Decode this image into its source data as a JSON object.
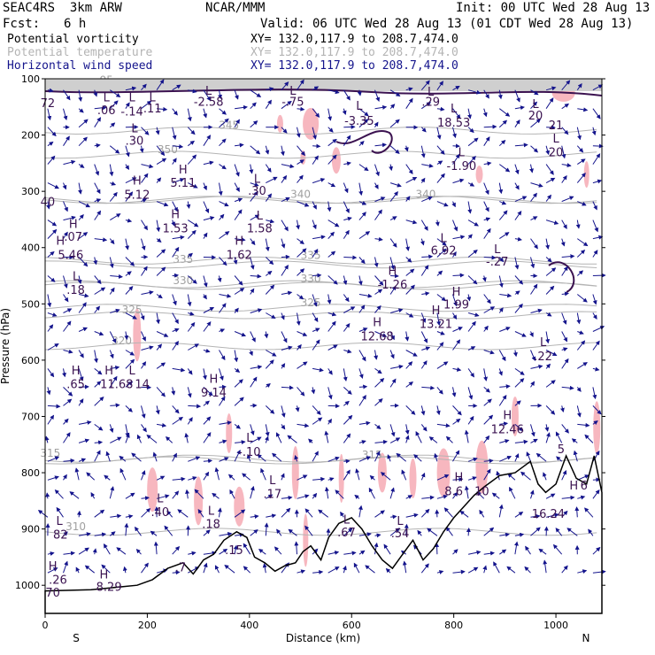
{
  "header": {
    "model": "SEAC4RS  3km ARW",
    "org": "NCAR/MMM",
    "init": "Init: 00 UTC Wed 28 Aug 13",
    "fcst_label": "Fcst:",
    "fcst_value": "6 h",
    "valid": "Valid: 06 UTC Wed 28 Aug 13 (01 CDT Wed 28 Aug 13)"
  },
  "legend": [
    {
      "field": "Potential vorticity",
      "xy": "XY= 132.0,117.9 to 208.7,474.0",
      "color": "#000000"
    },
    {
      "field": "Potential temperature",
      "xy": "XY= 132.0,117.9 to 208.7,474.0",
      "color": "#b4b4b4"
    },
    {
      "field": "Horizontal wind speed",
      "xy": "XY= 132.0,117.9 to 208.7,474.0",
      "color": "#14148c"
    }
  ],
  "chart_data": {
    "type": "cross-section",
    "xlabel": "Distance (km)",
    "ylabel": "Pressure (hPa)",
    "xlim": [
      0,
      1090
    ],
    "ylim": [
      1050,
      100
    ],
    "x_ticks": [
      0,
      200,
      400,
      600,
      800,
      1000
    ],
    "y_ticks": [
      100,
      200,
      300,
      400,
      500,
      600,
      700,
      800,
      900,
      1000
    ],
    "endpoints": {
      "left": "S",
      "right": "N"
    },
    "theta_contours": [
      {
        "label": "310",
        "p": 905,
        "lx": 60
      },
      {
        "label": "315",
        "p": 775,
        "lx": 10
      },
      {
        "label": "315",
        "p": 778,
        "lx": 640
      },
      {
        "label": "320",
        "p": 575,
        "lx": 150
      },
      {
        "label": "325",
        "p": 520,
        "lx": 170
      },
      {
        "label": "325",
        "p": 507,
        "lx": 520
      },
      {
        "label": "330",
        "p": 468,
        "lx": 270
      },
      {
        "label": "330",
        "p": 465,
        "lx": 520
      },
      {
        "label": "335",
        "p": 430,
        "lx": 270
      },
      {
        "label": "335",
        "p": 423,
        "lx": 520
      },
      {
        "label": "340",
        "p": 315,
        "lx": 500
      },
      {
        "label": "340",
        "p": 315,
        "lx": 745
      },
      {
        "label": "345",
        "p": 192,
        "lx": 360
      },
      {
        "label": "350",
        "p": 235,
        "lx": 240
      },
      {
        "label": "95",
        "p": 112,
        "lx": 120
      }
    ],
    "extrema": [
      {
        "t": "72",
        "x": 5,
        "p": 150
      },
      {
        "t": "L",
        "x": 120,
        "p": 140
      },
      {
        "t": ".06",
        "x": 120,
        "p": 163
      },
      {
        "t": "L",
        "x": 170,
        "p": 140
      },
      {
        "t": "-.14",
        "x": 170,
        "p": 165
      },
      {
        "t": "L",
        "x": 210,
        "p": 140
      },
      {
        "t": ".11",
        "x": 210,
        "p": 160
      },
      {
        "t": "L",
        "x": 175,
        "p": 195
      },
      {
        "t": ".30",
        "x": 175,
        "p": 217
      },
      {
        "t": "L",
        "x": 320,
        "p": 128
      },
      {
        "t": "-2.58",
        "x": 320,
        "p": 148
      },
      {
        "t": "L",
        "x": 485,
        "p": 128
      },
      {
        "t": "-.75",
        "x": 485,
        "p": 148
      },
      {
        "t": "L",
        "x": 615,
        "p": 155
      },
      {
        "t": "-3.35",
        "x": 615,
        "p": 182
      },
      {
        "t": "L",
        "x": 755,
        "p": 130
      },
      {
        "t": ".29",
        "x": 755,
        "p": 148
      },
      {
        "t": "L",
        "x": 800,
        "p": 160
      },
      {
        "t": "18.53",
        "x": 800,
        "p": 185
      },
      {
        "t": "L",
        "x": 815,
        "p": 238
      },
      {
        "t": "-1.90",
        "x": 815,
        "p": 262
      },
      {
        "t": "L",
        "x": 960,
        "p": 152
      },
      {
        "t": "20",
        "x": 960,
        "p": 172
      },
      {
        "t": "21",
        "x": 1000,
        "p": 190
      },
      {
        "t": "L",
        "x": 1000,
        "p": 213
      },
      {
        "t": "20",
        "x": 1000,
        "p": 238
      },
      {
        "t": "40",
        "x": 5,
        "p": 326
      },
      {
        "t": "H",
        "x": 180,
        "p": 288
      },
      {
        "t": "5.12",
        "x": 180,
        "p": 313
      },
      {
        "t": "H",
        "x": 270,
        "p": 268
      },
      {
        "t": "5.11",
        "x": 270,
        "p": 292
      },
      {
        "t": "L",
        "x": 415,
        "p": 285
      },
      {
        "t": ".30",
        "x": 415,
        "p": 306
      },
      {
        "t": "H",
        "x": 255,
        "p": 348
      },
      {
        "t": "1.53",
        "x": 255,
        "p": 373
      },
      {
        "t": "L",
        "x": 420,
        "p": 350
      },
      {
        "t": "1.58",
        "x": 420,
        "p": 373
      },
      {
        "t": "H",
        "x": 380,
        "p": 395
      },
      {
        "t": "1.62",
        "x": 380,
        "p": 420
      },
      {
        "t": "H",
        "x": 55,
        "p": 365
      },
      {
        "t": ".07",
        "x": 55,
        "p": 388
      },
      {
        "t": "H",
        "x": 30,
        "p": 395
      },
      {
        "t": "5.46",
        "x": 50,
        "p": 420
      },
      {
        "t": "L",
        "x": 60,
        "p": 458
      },
      {
        "t": ".18",
        "x": 60,
        "p": 482
      },
      {
        "t": "L",
        "x": 780,
        "p": 390
      },
      {
        "t": "6.92",
        "x": 780,
        "p": 412
      },
      {
        "t": "L",
        "x": 885,
        "p": 410
      },
      {
        "t": "-.27",
        "x": 885,
        "p": 432
      },
      {
        "t": "H",
        "x": 680,
        "p": 448
      },
      {
        "t": "-1.26",
        "x": 680,
        "p": 473
      },
      {
        "t": "H",
        "x": 805,
        "p": 485
      },
      {
        "t": "1.99",
        "x": 805,
        "p": 508
      },
      {
        "t": "H",
        "x": 765,
        "p": 518
      },
      {
        "t": "13.21",
        "x": 765,
        "p": 543
      },
      {
        "t": "H",
        "x": 650,
        "p": 540
      },
      {
        "t": "12.68",
        "x": 650,
        "p": 565
      },
      {
        "t": "L",
        "x": 975,
        "p": 575
      },
      {
        "t": ".22",
        "x": 975,
        "p": 600
      },
      {
        "t": "H",
        "x": 60,
        "p": 625
      },
      {
        "t": ".65",
        "x": 60,
        "p": 650
      },
      {
        "t": "H",
        "x": 125,
        "p": 625
      },
      {
        "t": "11.68",
        "x": 140,
        "p": 650
      },
      {
        "t": "L",
        "x": 170,
        "p": 625
      },
      {
        "t": "14",
        "x": 190,
        "p": 650
      },
      {
        "t": "H",
        "x": 330,
        "p": 640
      },
      {
        "t": "9.14",
        "x": 330,
        "p": 665
      },
      {
        "t": "H",
        "x": 905,
        "p": 705
      },
      {
        "t": "12.46",
        "x": 905,
        "p": 730
      },
      {
        "t": "L",
        "x": 400,
        "p": 745
      },
      {
        "t": "-.10",
        "x": 400,
        "p": 770
      },
      {
        "t": "5",
        "x": 1010,
        "p": 765
      },
      {
        "t": "L",
        "x": 445,
        "p": 820
      },
      {
        "t": ".17",
        "x": 445,
        "p": 845
      },
      {
        "t": "H",
        "x": 810,
        "p": 815
      },
      {
        "t": "8.6",
        "x": 800,
        "p": 840
      },
      {
        "t": "10",
        "x": 855,
        "p": 840
      },
      {
        "t": "L",
        "x": 225,
        "p": 853
      },
      {
        "t": ".40",
        "x": 225,
        "p": 877
      },
      {
        "t": "L",
        "x": 325,
        "p": 875
      },
      {
        "t": ".18",
        "x": 325,
        "p": 898
      },
      {
        "t": "H",
        "x": 1035,
        "p": 830
      },
      {
        "t": "6",
        "x": 1055,
        "p": 830
      },
      {
        "t": "L",
        "x": 28,
        "p": 893
      },
      {
        "t": "82",
        "x": 30,
        "p": 917
      },
      {
        "t": "L",
        "x": 590,
        "p": 890
      },
      {
        "t": ".67",
        "x": 590,
        "p": 913
      },
      {
        "t": "L",
        "x": 695,
        "p": 893
      },
      {
        "t": ".54",
        "x": 695,
        "p": 915
      },
      {
        "t": "16.24",
        "x": 985,
        "p": 880
      },
      {
        "t": ".15",
        "x": 370,
        "p": 945
      },
      {
        "t": ".7",
        "x": 265,
        "p": 975
      },
      {
        "t": "H",
        "x": 15,
        "p": 973
      },
      {
        "t": ".26",
        "x": 25,
        "p": 997
      },
      {
        "t": "70",
        "x": 15,
        "p": 1020
      },
      {
        "t": "H",
        "x": 115,
        "p": 988
      },
      {
        "t": "8.29",
        "x": 125,
        "p": 1010
      }
    ]
  }
}
